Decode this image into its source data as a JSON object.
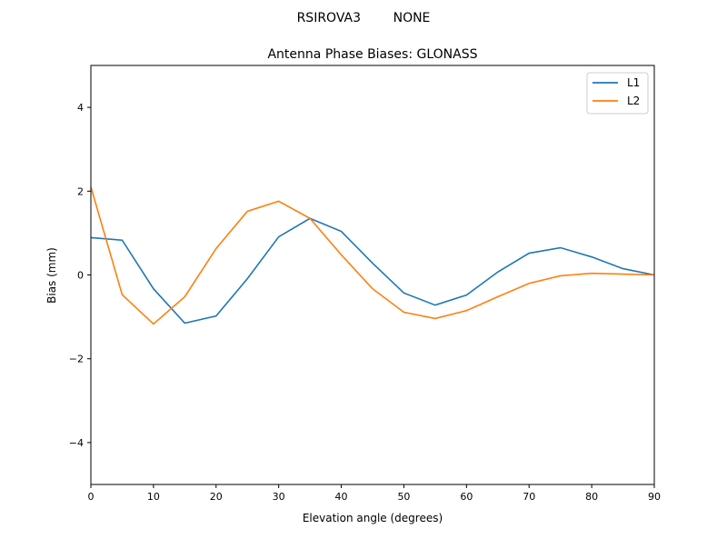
{
  "suptitle": "RSIROVA3        NONE",
  "chart_data": {
    "type": "line",
    "title": "Antenna Phase Biases: GLONASS",
    "xlabel": "Elevation angle (degrees)",
    "ylabel": "Bias (mm)",
    "xlim": [
      0,
      90
    ],
    "ylim": [
      -5,
      5
    ],
    "xticks": [
      0,
      10,
      20,
      30,
      40,
      50,
      60,
      70,
      80,
      90
    ],
    "yticks": [
      -4,
      -2,
      0,
      2,
      4
    ],
    "ytick_labels": [
      "−4",
      "−2",
      "0",
      "2",
      "4"
    ],
    "grid": false,
    "legend_position": "upper right",
    "x": [
      0,
      5,
      10,
      15,
      20,
      25,
      30,
      35,
      40,
      45,
      50,
      55,
      60,
      65,
      70,
      75,
      80,
      85,
      90
    ],
    "series": [
      {
        "name": "L1",
        "color": "#1f77b4",
        "values": [
          0.89,
          0.83,
          -0.33,
          -1.15,
          -0.98,
          -0.09,
          0.91,
          1.35,
          1.04,
          0.28,
          -0.43,
          -0.72,
          -0.48,
          0.07,
          0.52,
          0.65,
          0.43,
          0.15,
          0.0
        ]
      },
      {
        "name": "L2",
        "color": "#ff7f0e",
        "values": [
          2.1,
          -0.47,
          -1.17,
          -0.52,
          0.63,
          1.52,
          1.76,
          1.35,
          0.48,
          -0.33,
          -0.89,
          -1.04,
          -0.85,
          -0.52,
          -0.2,
          -0.02,
          0.04,
          0.02,
          0.0
        ]
      }
    ]
  }
}
